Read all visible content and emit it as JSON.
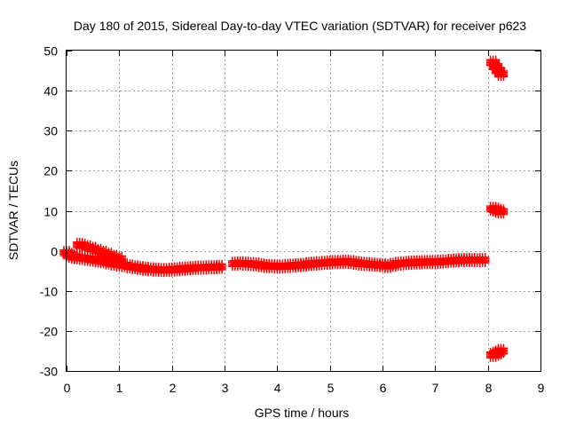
{
  "chart_data": {
    "type": "scatter",
    "title": "Day 180 of 2015, Sidereal Day-to-day VTEC variation (SDTVAR) for receiver p623",
    "xlabel": "GPS time / hours",
    "ylabel": "SDTVAR / TECUs",
    "xlim": [
      0,
      9
    ],
    "ylim": [
      -30,
      50
    ],
    "xticks": [
      0,
      1,
      2,
      3,
      4,
      5,
      6,
      7,
      8,
      9
    ],
    "yticks": [
      -30,
      -20,
      -10,
      0,
      10,
      20,
      30,
      40,
      50
    ],
    "grid": true,
    "legend": false,
    "marker": "plus",
    "series": [
      {
        "color": "#ff0000",
        "points": [
          [
            0.0,
            -0.5
          ],
          [
            0.05,
            -1.0
          ],
          [
            0.1,
            -1.3
          ],
          [
            0.15,
            -1.5
          ],
          [
            0.2,
            -1.6
          ],
          [
            0.3,
            -1.8
          ],
          [
            0.4,
            -2.0
          ],
          [
            0.5,
            -2.2
          ],
          [
            0.6,
            -2.4
          ],
          [
            0.7,
            -2.6
          ],
          [
            0.8,
            -2.9
          ],
          [
            0.9,
            -3.2
          ],
          [
            0.25,
            1.5
          ],
          [
            0.3,
            1.3
          ],
          [
            0.4,
            0.9
          ],
          [
            0.5,
            0.5
          ],
          [
            0.6,
            0.0
          ],
          [
            0.7,
            -0.5
          ],
          [
            0.8,
            -1.0
          ],
          [
            0.9,
            -1.5
          ],
          [
            1.0,
            -2.0
          ],
          [
            1.0,
            -3.4
          ],
          [
            1.1,
            -3.6
          ],
          [
            1.2,
            -3.9
          ],
          [
            1.3,
            -4.1
          ],
          [
            1.4,
            -4.3
          ],
          [
            1.5,
            -4.5
          ],
          [
            1.6,
            -4.6
          ],
          [
            1.7,
            -4.7
          ],
          [
            1.8,
            -4.8
          ],
          [
            1.9,
            -4.8
          ],
          [
            2.0,
            -4.7
          ],
          [
            2.1,
            -4.6
          ],
          [
            2.2,
            -4.5
          ],
          [
            2.3,
            -4.4
          ],
          [
            2.4,
            -4.3
          ],
          [
            2.5,
            -4.2
          ],
          [
            2.6,
            -4.2
          ],
          [
            2.7,
            -4.1
          ],
          [
            2.8,
            -4.1
          ],
          [
            2.9,
            -4.0
          ],
          [
            3.2,
            -3.2
          ],
          [
            3.3,
            -3.1
          ],
          [
            3.4,
            -3.2
          ],
          [
            3.5,
            -3.3
          ],
          [
            3.6,
            -3.4
          ],
          [
            3.7,
            -3.6
          ],
          [
            3.8,
            -3.8
          ],
          [
            3.9,
            -3.8
          ],
          [
            4.0,
            -3.9
          ],
          [
            4.1,
            -3.9
          ],
          [
            4.2,
            -3.8
          ],
          [
            4.3,
            -3.7
          ],
          [
            4.4,
            -3.6
          ],
          [
            4.5,
            -3.5
          ],
          [
            4.6,
            -3.3
          ],
          [
            4.7,
            -3.2
          ],
          [
            4.8,
            -3.1
          ],
          [
            4.9,
            -3.0
          ],
          [
            5.0,
            -2.9
          ],
          [
            5.1,
            -2.8
          ],
          [
            5.2,
            -2.8
          ],
          [
            5.3,
            -2.7
          ],
          [
            5.4,
            -2.8
          ],
          [
            5.5,
            -3.0
          ],
          [
            5.6,
            -3.2
          ],
          [
            5.7,
            -3.3
          ],
          [
            5.8,
            -3.4
          ],
          [
            5.9,
            -3.5
          ],
          [
            6.0,
            -3.6
          ],
          [
            6.1,
            -3.8
          ],
          [
            6.2,
            -3.5
          ],
          [
            6.3,
            -3.2
          ],
          [
            6.4,
            -3.1
          ],
          [
            6.5,
            -3.0
          ],
          [
            6.6,
            -2.9
          ],
          [
            6.7,
            -2.9
          ],
          [
            6.8,
            -2.8
          ],
          [
            6.9,
            -2.8
          ],
          [
            7.0,
            -2.8
          ],
          [
            7.1,
            -2.7
          ],
          [
            7.2,
            -2.6
          ],
          [
            7.3,
            -2.5
          ],
          [
            7.4,
            -2.4
          ],
          [
            7.5,
            -2.3
          ],
          [
            7.6,
            -2.3
          ],
          [
            7.7,
            -2.3
          ],
          [
            7.8,
            -2.3
          ],
          [
            7.9,
            -2.3
          ],
          [
            8.1,
            47.0
          ],
          [
            8.15,
            46.0
          ],
          [
            8.2,
            45.0
          ],
          [
            8.25,
            44.2
          ],
          [
            8.1,
            10.5
          ],
          [
            8.15,
            10.3
          ],
          [
            8.2,
            10.0
          ],
          [
            8.25,
            9.8
          ],
          [
            8.1,
            -26.0
          ],
          [
            8.15,
            -25.7
          ],
          [
            8.2,
            -25.4
          ],
          [
            8.25,
            -25.0
          ]
        ]
      }
    ]
  }
}
